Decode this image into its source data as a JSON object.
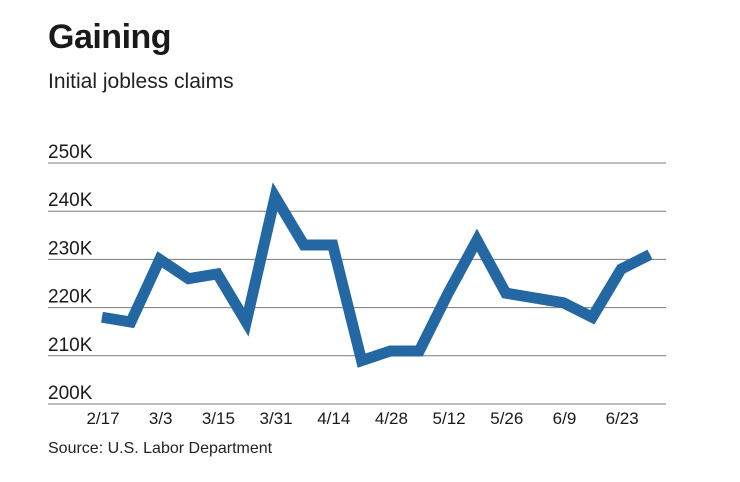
{
  "title": "Gaining",
  "subtitle": "Initial jobless claims",
  "source": "Source: U.S. Labor Department",
  "colors": {
    "line": "#2368a2",
    "grid": "#7a7a7a",
    "text": "#1a1a1a"
  },
  "chart_data": {
    "type": "line",
    "title": "Gaining",
    "subtitle": "Initial jobless claims",
    "xlabel": "",
    "ylabel": "",
    "ylim": [
      200000,
      250000
    ],
    "yticks": [
      250000,
      240000,
      230000,
      220000,
      210000,
      200000
    ],
    "ytick_labels": [
      "250K",
      "240K",
      "230K",
      "220K",
      "210K",
      "200K"
    ],
    "xtick_labels": [
      "2/17",
      "3/3",
      "3/15",
      "3/31",
      "4/14",
      "4/28",
      "5/12",
      "5/26",
      "6/9",
      "6/23"
    ],
    "grid": true,
    "series": [
      {
        "values": [
          218000,
          217000,
          230000,
          226000,
          227000,
          217000,
          243000,
          233000,
          233000,
          209000,
          211000,
          211000,
          223000,
          234000,
          223000,
          222000,
          221000,
          218000,
          228000,
          231000
        ]
      }
    ]
  }
}
